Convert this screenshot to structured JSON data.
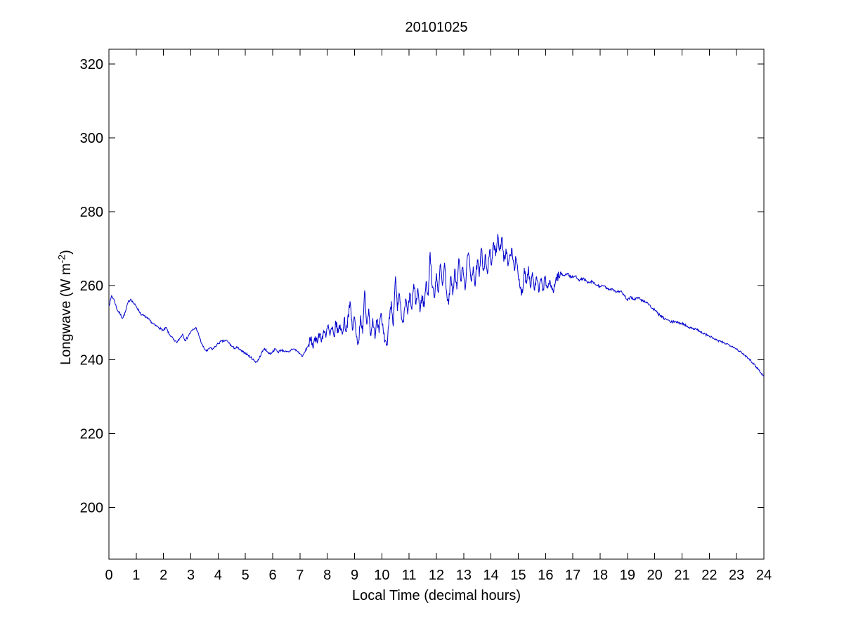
{
  "chart_data": {
    "type": "line",
    "title": "20101025",
    "xlabel": "Local Time (decimal hours)",
    "ylabel": "Longwave (W m^-2)",
    "ylabel_parts": {
      "prefix": "Longwave (W m",
      "superscript": "-2",
      "suffix": ")"
    },
    "xlim": [
      0,
      24
    ],
    "ylim": [
      186,
      324
    ],
    "xticks": [
      0,
      1,
      2,
      3,
      4,
      5,
      6,
      7,
      8,
      9,
      10,
      11,
      12,
      13,
      14,
      15,
      16,
      17,
      18,
      19,
      20,
      21,
      22,
      23,
      24
    ],
    "yticks": [
      200,
      220,
      240,
      260,
      280,
      300,
      320
    ],
    "grid": false,
    "legend": null,
    "line_color": "#0000CC",
    "axis_color": "#000000",
    "background_color": "#ffffff",
    "jitter": {
      "seed": 7,
      "step": 0.0167,
      "ranges": [
        [
          0,
          7.3,
          0.3
        ],
        [
          7.3,
          16.6,
          1.4
        ],
        [
          16.6,
          20.8,
          0.35
        ],
        [
          20.8,
          24,
          0.3
        ]
      ]
    },
    "series": [
      {
        "name": "longwave",
        "points": [
          [
            0,
            254.5
          ],
          [
            0.1,
            257.3
          ],
          [
            0.2,
            256.0
          ],
          [
            0.3,
            253.5
          ],
          [
            0.4,
            252.5
          ],
          [
            0.5,
            251.2
          ],
          [
            0.6,
            252.8
          ],
          [
            0.7,
            255.5
          ],
          [
            0.8,
            256.4
          ],
          [
            0.9,
            255.3
          ],
          [
            1.0,
            254.4
          ],
          [
            1.1,
            253.2
          ],
          [
            1.2,
            252.1
          ],
          [
            1.3,
            251.8
          ],
          [
            1.4,
            251.2
          ],
          [
            1.5,
            250.6
          ],
          [
            1.6,
            249.8
          ],
          [
            1.7,
            249.2
          ],
          [
            1.8,
            248.9
          ],
          [
            1.9,
            248.3
          ],
          [
            2.0,
            247.9
          ],
          [
            2.1,
            248.7
          ],
          [
            2.2,
            246.9
          ],
          [
            2.3,
            246.2
          ],
          [
            2.4,
            245.0
          ],
          [
            2.5,
            244.7
          ],
          [
            2.6,
            245.8
          ],
          [
            2.7,
            246.9
          ],
          [
            2.8,
            245.1
          ],
          [
            2.9,
            246.3
          ],
          [
            3.0,
            247.5
          ],
          [
            3.1,
            248.2
          ],
          [
            3.2,
            248.6
          ],
          [
            3.3,
            246.4
          ],
          [
            3.4,
            244.3
          ],
          [
            3.5,
            242.8
          ],
          [
            3.6,
            242.3
          ],
          [
            3.7,
            243.2
          ],
          [
            3.8,
            242.8
          ],
          [
            3.9,
            243.6
          ],
          [
            4.0,
            244.3
          ],
          [
            4.1,
            244.9
          ],
          [
            4.2,
            245.0
          ],
          [
            4.3,
            245.2
          ],
          [
            4.4,
            244.5
          ],
          [
            4.5,
            243.6
          ],
          [
            4.6,
            243.1
          ],
          [
            4.7,
            243.3
          ],
          [
            4.8,
            242.6
          ],
          [
            4.9,
            242.1
          ],
          [
            5.0,
            241.8
          ],
          [
            5.1,
            241.2
          ],
          [
            5.2,
            240.6
          ],
          [
            5.3,
            239.9
          ],
          [
            5.4,
            239.3
          ],
          [
            5.5,
            240.2
          ],
          [
            5.6,
            241.9
          ],
          [
            5.7,
            243.0
          ],
          [
            5.8,
            242.2
          ],
          [
            5.9,
            241.5
          ],
          [
            6.0,
            242.2
          ],
          [
            6.1,
            242.9
          ],
          [
            6.2,
            242.0
          ],
          [
            6.3,
            242.6
          ],
          [
            6.4,
            242.4
          ],
          [
            6.5,
            242.1
          ],
          [
            6.6,
            242.0
          ],
          [
            6.7,
            242.9
          ],
          [
            6.8,
            242.8
          ],
          [
            6.9,
            242.3
          ],
          [
            7.0,
            241.6
          ],
          [
            7.1,
            240.9
          ],
          [
            7.2,
            242.4
          ],
          [
            7.3,
            243.8
          ],
          [
            7.4,
            245.2
          ],
          [
            7.5,
            244.1
          ],
          [
            7.57,
            246.3
          ],
          [
            7.65,
            244.8
          ],
          [
            7.72,
            247.0
          ],
          [
            7.8,
            245.5
          ],
          [
            7.87,
            247.8
          ],
          [
            7.95,
            246.0
          ],
          [
            8.02,
            249.2
          ],
          [
            8.1,
            246.5
          ],
          [
            8.17,
            248.3
          ],
          [
            8.25,
            246.2
          ],
          [
            8.32,
            250.1
          ],
          [
            8.4,
            247.3
          ],
          [
            8.47,
            249.5
          ],
          [
            8.55,
            246.8
          ],
          [
            8.62,
            251.0
          ],
          [
            8.7,
            247.6
          ],
          [
            8.77,
            252.3
          ],
          [
            8.85,
            255.0
          ],
          [
            8.92,
            248.0
          ],
          [
            9.0,
            251.5
          ],
          [
            9.07,
            246.2
          ],
          [
            9.15,
            244.5
          ],
          [
            9.22,
            252.0
          ],
          [
            9.3,
            247.0
          ],
          [
            9.37,
            258.7
          ],
          [
            9.45,
            249.5
          ],
          [
            9.52,
            253.8
          ],
          [
            9.6,
            246.5
          ],
          [
            9.67,
            251.2
          ],
          [
            9.75,
            245.6
          ],
          [
            9.82,
            250.4
          ],
          [
            9.9,
            247.2
          ],
          [
            9.97,
            252.6
          ],
          [
            10.05,
            248.0
          ],
          [
            10.12,
            245.2
          ],
          [
            10.2,
            244.0
          ],
          [
            10.27,
            251.5
          ],
          [
            10.35,
            255.8
          ],
          [
            10.42,
            249.0
          ],
          [
            10.5,
            262.5
          ],
          [
            10.57,
            253.2
          ],
          [
            10.65,
            257.6
          ],
          [
            10.72,
            251.0
          ],
          [
            10.8,
            250.3
          ],
          [
            10.87,
            256.4
          ],
          [
            10.95,
            252.2
          ],
          [
            11.02,
            258.0
          ],
          [
            11.1,
            253.5
          ],
          [
            11.17,
            260.5
          ],
          [
            11.25,
            255.0
          ],
          [
            11.32,
            259.3
          ],
          [
            11.4,
            252.8
          ],
          [
            11.47,
            257.5
          ],
          [
            11.55,
            254.2
          ],
          [
            11.62,
            261.0
          ],
          [
            11.7,
            257.3
          ],
          [
            11.77,
            269.1
          ],
          [
            11.85,
            259.5
          ],
          [
            11.92,
            256.8
          ],
          [
            12.0,
            263.4
          ],
          [
            12.07,
            258.2
          ],
          [
            12.15,
            265.8
          ],
          [
            12.22,
            260.0
          ],
          [
            12.3,
            266.2
          ],
          [
            12.37,
            258.5
          ],
          [
            12.45,
            254.9
          ],
          [
            12.52,
            262.3
          ],
          [
            12.6,
            257.4
          ],
          [
            12.67,
            264.6
          ],
          [
            12.75,
            259.0
          ],
          [
            12.82,
            267.4
          ],
          [
            12.9,
            261.2
          ],
          [
            12.97,
            265.0
          ],
          [
            13.05,
            258.8
          ],
          [
            13.12,
            266.8
          ],
          [
            13.2,
            268.0
          ],
          [
            13.27,
            261.5
          ],
          [
            13.35,
            265.2
          ],
          [
            13.42,
            259.8
          ],
          [
            13.5,
            267.0
          ],
          [
            13.57,
            262.4
          ],
          [
            13.65,
            270.2
          ],
          [
            13.72,
            264.0
          ],
          [
            13.8,
            268.5
          ],
          [
            13.87,
            263.2
          ],
          [
            13.95,
            269.6
          ],
          [
            14.02,
            265.5
          ],
          [
            14.1,
            271.8
          ],
          [
            14.17,
            268.0
          ],
          [
            14.25,
            274.0
          ],
          [
            14.32,
            269.5
          ],
          [
            14.4,
            273.2
          ],
          [
            14.47,
            266.5
          ],
          [
            14.55,
            270.0
          ],
          [
            14.62,
            265.3
          ],
          [
            14.7,
            268.2
          ],
          [
            14.77,
            270.1
          ],
          [
            14.85,
            264.8
          ],
          [
            14.92,
            267.2
          ],
          [
            15.0,
            262.5
          ],
          [
            15.07,
            259.2
          ],
          [
            15.15,
            258.0
          ],
          [
            15.22,
            264.8
          ],
          [
            15.3,
            260.5
          ],
          [
            15.37,
            265.3
          ],
          [
            15.45,
            259.5
          ],
          [
            15.52,
            263.6
          ],
          [
            15.6,
            258.8
          ],
          [
            15.67,
            262.4
          ],
          [
            15.75,
            258.2
          ],
          [
            15.82,
            261.8
          ],
          [
            15.9,
            258.5
          ],
          [
            15.97,
            262.2
          ],
          [
            16.05,
            259.4
          ],
          [
            16.12,
            260.8
          ],
          [
            16.2,
            259.6
          ],
          [
            16.27,
            258.9
          ],
          [
            16.35,
            260.5
          ],
          [
            16.42,
            262.8
          ],
          [
            16.5,
            262.2
          ],
          [
            16.57,
            263.4
          ],
          [
            16.65,
            262.8
          ],
          [
            16.8,
            263.3
          ],
          [
            16.95,
            262.2
          ],
          [
            17.1,
            262.6
          ],
          [
            17.25,
            261.5
          ],
          [
            17.4,
            261.9
          ],
          [
            17.55,
            260.7
          ],
          [
            17.7,
            261.1
          ],
          [
            17.85,
            260.2
          ],
          [
            18.0,
            259.8
          ],
          [
            18.15,
            259.9
          ],
          [
            18.3,
            258.9
          ],
          [
            18.45,
            259.2
          ],
          [
            18.6,
            258.3
          ],
          [
            18.75,
            258.6
          ],
          [
            18.9,
            257.2
          ],
          [
            19.0,
            255.9
          ],
          [
            19.1,
            257.0
          ],
          [
            19.25,
            256.3
          ],
          [
            19.4,
            256.8
          ],
          [
            19.55,
            255.9
          ],
          [
            19.7,
            255.6
          ],
          [
            19.8,
            254.8
          ],
          [
            19.9,
            253.9
          ],
          [
            20.0,
            253.4
          ],
          [
            20.1,
            252.6
          ],
          [
            20.2,
            251.9
          ],
          [
            20.3,
            251.3
          ],
          [
            20.45,
            250.8
          ],
          [
            20.6,
            250.1
          ],
          [
            20.75,
            250.4
          ],
          [
            20.9,
            249.8
          ],
          [
            21.0,
            249.9
          ],
          [
            21.1,
            249.4
          ],
          [
            21.25,
            248.8
          ],
          [
            21.4,
            248.3
          ],
          [
            21.5,
            248.5
          ],
          [
            21.65,
            247.6
          ],
          [
            21.8,
            247.0
          ],
          [
            21.95,
            246.5
          ],
          [
            22.1,
            246.0
          ],
          [
            22.25,
            245.3
          ],
          [
            22.4,
            244.9
          ],
          [
            22.55,
            244.5
          ],
          [
            22.7,
            244.1
          ],
          [
            22.85,
            243.6
          ],
          [
            23.0,
            242.9
          ],
          [
            23.1,
            242.3
          ],
          [
            23.2,
            241.7
          ],
          [
            23.3,
            241.2
          ],
          [
            23.45,
            240.3
          ],
          [
            23.6,
            239.1
          ],
          [
            23.7,
            238.2
          ],
          [
            23.8,
            237.4
          ],
          [
            23.9,
            236.3
          ],
          [
            24.0,
            235.4
          ]
        ]
      }
    ]
  }
}
